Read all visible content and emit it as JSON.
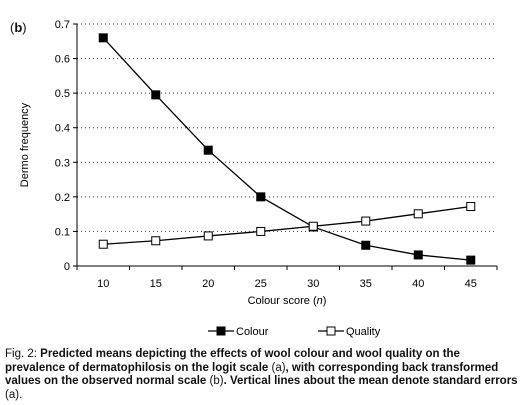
{
  "chart_data": {
    "type": "line",
    "panel_open": "(",
    "panel_letter": "b",
    "panel_close": ")",
    "ylabel": "Dermo frequency",
    "xlabel_prefix": "Colour score (",
    "xlabel_var": "n",
    "xlabel_suffix": ")",
    "x": [
      10,
      15,
      20,
      25,
      30,
      35,
      40,
      45
    ],
    "ylim": [
      0,
      0.7
    ],
    "yticks": [
      "0",
      "0.1",
      "0.2",
      "0.3",
      "0.4",
      "0.5",
      "0.6",
      "0.7"
    ],
    "grid": "horizontal dotted",
    "legend_position": "bottom-center",
    "series": [
      {
        "name": "Colour",
        "marker": "filled-square",
        "values": [
          0.66,
          0.495,
          0.335,
          0.2,
          0.113,
          0.06,
          0.032,
          0.017
        ]
      },
      {
        "name": "Quality",
        "marker": "open-square",
        "values": [
          0.063,
          0.073,
          0.087,
          0.1,
          0.115,
          0.13,
          0.151,
          0.172
        ]
      }
    ]
  },
  "caption": {
    "prefix": "Fig. 2: ",
    "part1": "Predicted means depicting the effects of wool colour and wool quality on the prevalence of dermatophilosis on the logit scale ",
    "paren1": "(a)",
    "part2": ", with corresponding back transformed values on the observed normal scale ",
    "paren2": "(b)",
    "part3": ". Vertical lines about the mean denote standard errors ",
    "paren3": "(a)",
    "end": "."
  }
}
